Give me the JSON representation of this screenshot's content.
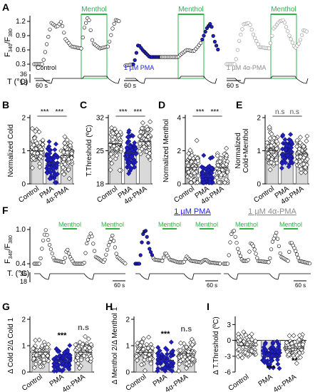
{
  "panel_letters": [
    "A",
    "B",
    "C",
    "D",
    "E",
    "F",
    "G",
    "H",
    "I"
  ],
  "colors": {
    "menthol_green": "#2db34a",
    "pma_blue": "#2020c0",
    "pma_label_blue": "#1a1aff",
    "inactive_gray": "#8c8c8c",
    "ns_gray": "#555555",
    "axis_black": "#000000"
  },
  "panel_A": {
    "ylabel_main": "F",
    "ylabel_sub1": "340",
    "ylabel_sep": "/F",
    "ylabel_sub2": "380",
    "yticks": [
      "1.2",
      "0.9",
      "0.6",
      "0.3"
    ],
    "temp_label": "T (°C)",
    "temp_ticks": [
      "36",
      "18"
    ],
    "time_scale": "60 s",
    "menthol_label": "Menthol",
    "traces": [
      {
        "condition": "Control"
      },
      {
        "condition": "1 µM PMA"
      },
      {
        "condition": "1 µM 4α-PMA"
      }
    ]
  },
  "panel_F": {
    "ylabel_main": "F",
    "ylabel_sub1": "340",
    "ylabel_sep": "/F",
    "ylabel_sub2": "380",
    "yticks": [
      "1.0",
      "0.4"
    ],
    "temp_label": "T. (°C)",
    "temp_ticks": [
      "36",
      "18"
    ],
    "time_scale": "60 s",
    "menthol_label": "Menthol",
    "traces": [
      {
        "title": ""
      },
      {
        "title": "1 µM PMA"
      },
      {
        "title": "1 µM 4α-PMA"
      }
    ]
  },
  "chart_data": [
    {
      "panel": "B",
      "type": "bar",
      "ylabel": "Normalized Cold",
      "categories": [
        "Control",
        "PMA",
        "4α-PMA"
      ],
      "values": [
        1.0,
        0.62,
        0.85
      ],
      "ylim": [
        0,
        2
      ],
      "yticks": [
        0,
        1,
        2
      ],
      "significance": [
        {
          "pair": "Control-PMA",
          "label": "***"
        },
        {
          "pair": "PMA-4α-PMA",
          "label": "***"
        }
      ]
    },
    {
      "panel": "C",
      "type": "bar",
      "ylabel": "T.Threshold (ºC)",
      "categories": [
        "Control",
        "PMA",
        "4α-PMA"
      ],
      "values": [
        26.5,
        24.5,
        27.0
      ],
      "ylim": [
        18,
        32
      ],
      "yticks": [
        18,
        25,
        32
      ],
      "significance": [
        {
          "pair": "Control-PMA",
          "label": "***"
        },
        {
          "pair": "PMA-4α-PMA",
          "label": "***"
        }
      ]
    },
    {
      "panel": "D",
      "type": "bar",
      "ylabel": "Normalized Menthol",
      "categories": [
        "Control",
        "PMA",
        "4α-PMA"
      ],
      "values": [
        1.0,
        0.45,
        1.0
      ],
      "ylim": [
        0,
        4
      ],
      "yticks": [
        0,
        2,
        4
      ],
      "significance": [
        {
          "pair": "Control-PMA",
          "label": "***"
        },
        {
          "pair": "PMA-4α-PMA",
          "label": "***"
        }
      ]
    },
    {
      "panel": "E",
      "type": "bar",
      "ylabel": "Normalized Cold+Menthol",
      "ylabel_lines": [
        "Normalized",
        "Cold+Menthol"
      ],
      "categories": [
        "Control",
        "PMA",
        "4α-PMA"
      ],
      "values": [
        1.0,
        0.95,
        0.9
      ],
      "ylim": [
        0,
        2
      ],
      "yticks": [
        0,
        1,
        2
      ],
      "significance": [
        {
          "pair": "Control-PMA",
          "label": "n.s"
        },
        {
          "pair": "PMA-4α-PMA",
          "label": "n.s"
        }
      ]
    },
    {
      "panel": "G",
      "type": "bar",
      "ylabel": "Δ Cold 2/Δ Cold 1",
      "categories": [
        "Control",
        "PMA",
        "4α-PMA"
      ],
      "values": [
        0.75,
        0.4,
        0.75
      ],
      "ylim": [
        0,
        2
      ],
      "yticks": [
        0,
        1,
        2
      ],
      "annotations": [
        {
          "category": "PMA",
          "label": "***"
        },
        {
          "category": "4α-PMA",
          "label": "n.s"
        }
      ]
    },
    {
      "panel": "H",
      "type": "bar",
      "ylabel": "Δ Menthol 2/Δ Menthol 1",
      "categories": [
        "Control",
        "PMA",
        "4α-PMA"
      ],
      "values": [
        0.75,
        0.45,
        0.7
      ],
      "ylim": [
        0,
        2
      ],
      "yticks": [
        0,
        1,
        2
      ],
      "annotations": [
        {
          "category": "PMA",
          "label": "***"
        },
        {
          "category": "4α-PMA",
          "label": "n.s"
        }
      ]
    },
    {
      "panel": "I",
      "type": "bar",
      "ylabel": "Δ T.Threshold (ºC)",
      "categories": [
        "Control",
        "PMA",
        "4α-PMA"
      ],
      "values": [
        -1.0,
        -3.0,
        -1.5
      ],
      "ylim": [
        -6,
        4
      ],
      "yticks": [
        -6,
        -3,
        0,
        3
      ],
      "annotations": [
        {
          "category": "PMA",
          "label": "***"
        },
        {
          "category": "4α-PMA",
          "label": "**"
        }
      ]
    }
  ]
}
